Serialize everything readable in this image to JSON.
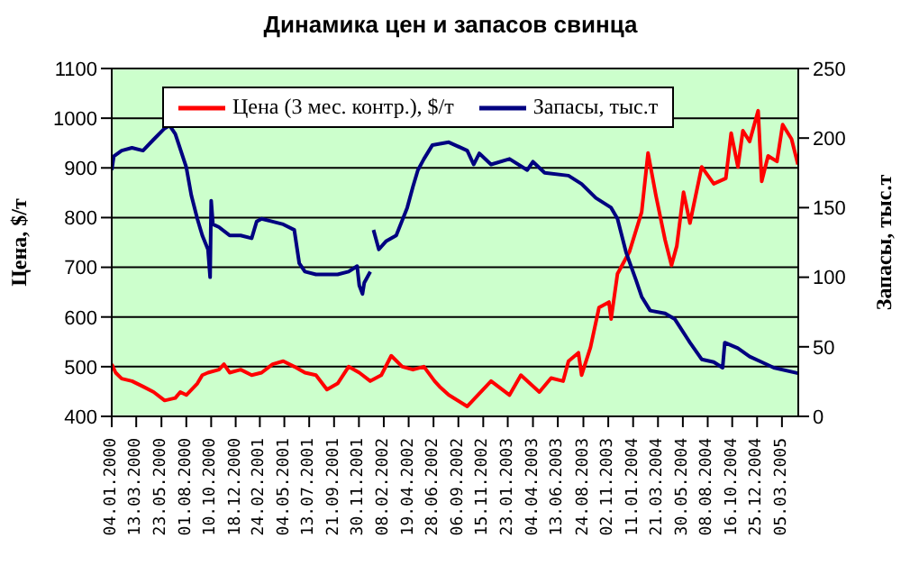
{
  "chart_data": {
    "type": "line",
    "title": "Динамика цен и запасов свинца",
    "ylabel": "Цена, $/т",
    "y2label": "Запасы, тыс.т",
    "xlim": [
      "2000-01-04",
      "2005-04-20"
    ],
    "xticks": [
      {
        "value": "2000-01-04",
        "label": "04.01.2000"
      },
      {
        "value": "2000-03-13",
        "label": "13.03.2000"
      },
      {
        "value": "2000-05-23",
        "label": "23.05.2000"
      },
      {
        "value": "2000-08-01",
        "label": "01.08.2000"
      },
      {
        "value": "2000-10-10",
        "label": "10.10.2000"
      },
      {
        "value": "2000-12-18",
        "label": "18.12.2000"
      },
      {
        "value": "2001-02-24",
        "label": "24.02.2001"
      },
      {
        "value": "2001-05-04",
        "label": "04.05.2001"
      },
      {
        "value": "2001-07-13",
        "label": "13.07.2001"
      },
      {
        "value": "2001-09-21",
        "label": "21.09.2001"
      },
      {
        "value": "2001-11-30",
        "label": "30.11.2001"
      },
      {
        "value": "2002-02-08",
        "label": "08.02.2002"
      },
      {
        "value": "2002-04-19",
        "label": "19.04.2002"
      },
      {
        "value": "2002-06-28",
        "label": "28.06.2002"
      },
      {
        "value": "2002-09-06",
        "label": "06.09.2002"
      },
      {
        "value": "2002-11-15",
        "label": "15.11.2002"
      },
      {
        "value": "2003-01-23",
        "label": "23.01.2003"
      },
      {
        "value": "2003-04-04",
        "label": "04.04.2003"
      },
      {
        "value": "2003-06-13",
        "label": "13.06.2003"
      },
      {
        "value": "2003-08-24",
        "label": "24.08.2003"
      },
      {
        "value": "2003-11-02",
        "label": "02.11.2003"
      },
      {
        "value": "2004-01-11",
        "label": "11.01.2004"
      },
      {
        "value": "2004-03-21",
        "label": "21.03.2004"
      },
      {
        "value": "2004-05-30",
        "label": "30.05.2004"
      },
      {
        "value": "2004-08-08",
        "label": "08.08.2004"
      },
      {
        "value": "2004-10-16",
        "label": "16.10.2004"
      },
      {
        "value": "2004-12-25",
        "label": "25.12.2004"
      },
      {
        "value": "2005-03-05",
        "label": "05.03.2005"
      }
    ],
    "ylim": [
      400,
      1100
    ],
    "yticks": [
      400,
      500,
      600,
      700,
      800,
      900,
      1000,
      1100
    ],
    "y2lim": [
      0,
      250
    ],
    "y2ticks": [
      0,
      50,
      100,
      150,
      200,
      250
    ],
    "grid": "y",
    "legend": "top",
    "marker": "none",
    "line_style": "solid",
    "series": [
      {
        "name": "Цена (3 мес. контр.), $/т",
        "color": "#ff0000",
        "x": [
          "2000-01-04",
          "2000-01-15",
          "2000-02-01",
          "2000-03-01",
          "2000-04-01",
          "2000-05-01",
          "2000-06-01",
          "2000-07-01",
          "2000-07-15",
          "2000-08-01",
          "2000-09-01",
          "2000-09-15",
          "2000-10-01",
          "2000-11-01",
          "2000-11-15",
          "2000-12-01",
          "2001-01-01",
          "2001-02-01",
          "2001-03-01",
          "2001-04-01",
          "2001-05-01",
          "2001-06-01",
          "2001-07-01",
          "2001-08-01",
          "2001-09-01",
          "2001-10-01",
          "2001-11-01",
          "2001-12-01",
          "2002-01-01",
          "2002-02-01",
          "2002-03-01",
          "2002-04-01",
          "2002-05-01",
          "2002-06-01",
          "2002-07-01",
          "2002-07-15",
          "2002-08-10",
          "2002-10-01",
          "2002-12-07",
          "2003-01-28",
          "2003-03-01",
          "2003-04-22",
          "2003-05-25",
          "2003-06-28",
          "2003-07-13",
          "2003-08-10",
          "2003-08-19",
          "2003-09-13",
          "2003-10-07",
          "2003-11-04",
          "2003-11-10",
          "2003-11-28",
          "2004-01-01",
          "2004-02-04",
          "2004-02-22",
          "2004-03-15",
          "2004-04-10",
          "2004-04-28",
          "2004-05-13",
          "2004-06-01",
          "2004-06-19",
          "2004-07-22",
          "2004-08-25",
          "2004-09-28",
          "2004-10-13",
          "2004-11-01",
          "2004-11-15",
          "2004-12-04",
          "2004-12-28",
          "2005-01-07",
          "2005-01-25",
          "2005-02-19",
          "2005-03-07",
          "2005-04-01",
          "2005-04-19"
        ],
        "values": [
          505,
          488,
          476,
          471,
          460,
          449,
          432,
          437,
          449,
          443,
          466,
          483,
          488,
          494,
          505,
          488,
          494,
          483,
          488,
          505,
          511,
          500,
          488,
          483,
          454,
          466,
          500,
          488,
          471,
          483,
          522,
          500,
          494,
          500,
          471,
          460,
          443,
          420,
          471,
          443,
          483,
          449,
          477,
          471,
          511,
          528,
          483,
          539,
          619,
          630,
          596,
          687,
          732,
          811,
          930,
          845,
          755,
          704,
          743,
          851,
          789,
          902,
          868,
          879,
          970,
          902,
          975,
          953,
          1015,
          873,
          924,
          913,
          987,
          958,
          907
        ]
      },
      {
        "name": "Запасы, тыс.т",
        "color": "#000080",
        "axis": "y2",
        "x": [
          "2000-01-04",
          "2000-01-10",
          "2000-02-01",
          "2000-03-01",
          "2000-04-01",
          "2000-05-01",
          "2000-06-01",
          "2000-06-15",
          "2000-07-01",
          "2000-08-01",
          "2000-08-15",
          "2000-09-01",
          "2000-09-15",
          "2000-10-01",
          "2000-10-07",
          "2000-10-10",
          "2000-10-15",
          "2000-11-01",
          "2000-12-01",
          "2001-01-01",
          "2001-02-01",
          "2001-02-15",
          "2001-03-01",
          "2001-04-01",
          "2001-05-01",
          "2001-06-01",
          "2001-06-15",
          "2001-07-01",
          "2001-08-01",
          "2001-09-01",
          "2001-10-01",
          "2001-11-01",
          "2001-11-25",
          "2001-12-01",
          "2001-12-10",
          "2001-12-15",
          "2002-01-01",
          "2002-01-04",
          "2002-01-10",
          "2002-01-25",
          "2002-02-15",
          "2002-03-15",
          "2002-04-15",
          "2002-05-01",
          "2002-05-15",
          "2002-06-01",
          "2002-06-25",
          "2002-08-10",
          "2002-10-01",
          "2002-10-19",
          "2002-11-04",
          "2002-12-07",
          "2003-01-28",
          "2003-03-19",
          "2003-04-04",
          "2003-05-07",
          "2003-07-13",
          "2003-08-19",
          "2003-09-28",
          "2003-11-10",
          "2003-11-28",
          "2003-12-22",
          "2004-01-19",
          "2004-02-04",
          "2004-02-28",
          "2004-04-10",
          "2004-05-07",
          "2004-06-19",
          "2004-07-22",
          "2004-08-25",
          "2004-09-19",
          "2004-09-25",
          "2004-11-01",
          "2004-12-04",
          "2005-01-07",
          "2005-02-10",
          "2005-04-19"
        ],
        "values": [
          177,
          187,
          191,
          193,
          191,
          199,
          207,
          209,
          203,
          179,
          159,
          142,
          130,
          120,
          100,
          155,
          138,
          136,
          130,
          130,
          128,
          140,
          142,
          140,
          138,
          134,
          110,
          104,
          102,
          102,
          102,
          104,
          108,
          94,
          88,
          96,
          104,
          null,
          134,
          120,
          126,
          130,
          150,
          165,
          177,
          185,
          195,
          197,
          191,
          181,
          189,
          181,
          185,
          177,
          183,
          175,
          173,
          167,
          157,
          150,
          142,
          118,
          98,
          86,
          76,
          74,
          70,
          53,
          41,
          39,
          35,
          53,
          49,
          43,
          39,
          35,
          31
        ]
      }
    ]
  }
}
